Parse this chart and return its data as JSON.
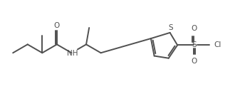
{
  "bg_color": "#ffffff",
  "line_color": "#505050",
  "text_color": "#505050",
  "line_width": 1.4,
  "font_size": 7.5,
  "figsize": [
    3.3,
    1.32
  ],
  "dpi": 100,
  "xlim": [
    0,
    10
  ],
  "ylim": [
    0,
    4
  ]
}
